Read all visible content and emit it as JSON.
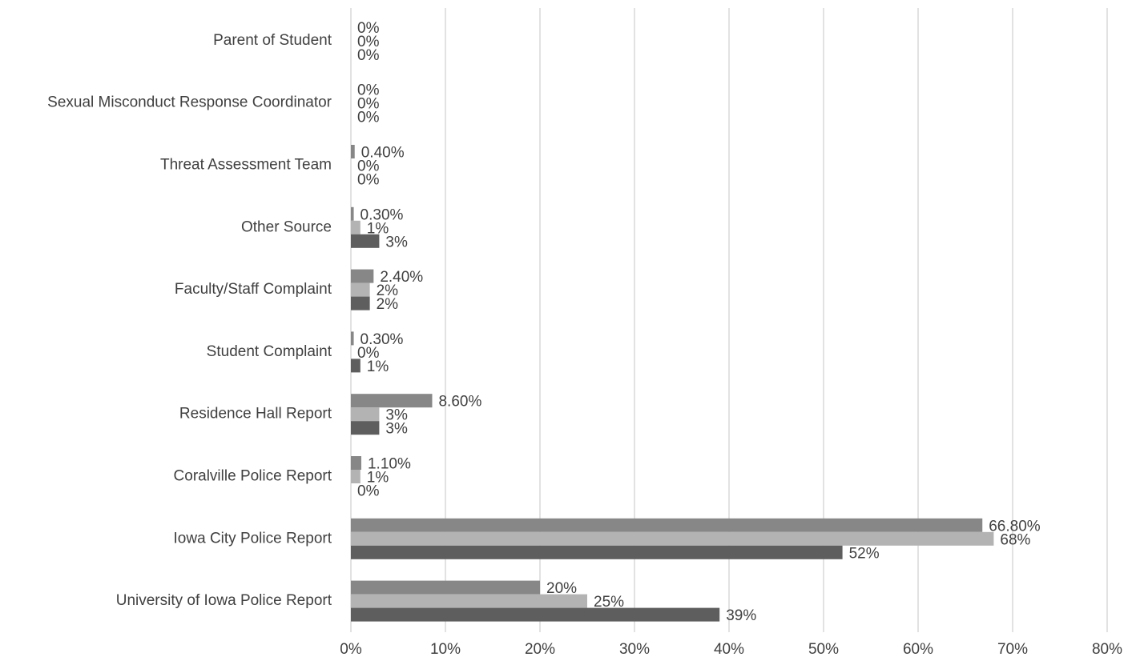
{
  "chart_data": {
    "type": "hbar",
    "categories": [
      "University of Iowa Police Report",
      "Iowa City Police Report",
      "Coralville Police Report",
      "Residence Hall Report",
      "Student Complaint",
      "Faculty/Staff Complaint",
      "Other Source",
      "Threat Assessment Team",
      "Sexual Misconduct Response Coordinator",
      "Parent of Student"
    ],
    "series": [
      {
        "color": "#878787",
        "values": [
          20,
          66.8,
          1.1,
          8.6,
          0.3,
          2.4,
          0.3,
          0.4,
          0,
          0
        ],
        "value_labels": [
          "20%",
          "66.80%",
          "1.10%",
          "8.60%",
          "0.30%",
          "2.40%",
          "0.30%",
          "0.40%",
          "0%",
          "0%"
        ]
      },
      {
        "color": "#b3b3b3",
        "values": [
          25,
          68,
          1,
          3,
          0,
          2,
          1,
          0,
          0,
          0
        ],
        "value_labels": [
          "25%",
          "68%",
          "1%",
          "3%",
          "0%",
          "2%",
          "1%",
          "0%",
          "0%",
          "0%"
        ]
      },
      {
        "color": "#5e5e5e",
        "values": [
          39,
          52,
          0,
          3,
          1,
          2,
          3,
          0,
          0,
          0
        ],
        "value_labels": [
          "39%",
          "52%",
          "0%",
          "3%",
          "1%",
          "2%",
          "3%",
          "0%",
          "0%",
          "0%"
        ]
      }
    ],
    "xlim": [
      0,
      80
    ],
    "xticks": [
      {
        "value": 0,
        "label": "0%"
      },
      {
        "value": 10,
        "label": "10%"
      },
      {
        "value": 20,
        "label": "20%"
      },
      {
        "value": 30,
        "label": "30%"
      },
      {
        "value": 40,
        "label": "40%"
      },
      {
        "value": 50,
        "label": "50%"
      },
      {
        "value": 60,
        "label": "60%"
      },
      {
        "value": 70,
        "label": "70%"
      },
      {
        "value": 80,
        "label": "80%"
      }
    ],
    "grid": true
  }
}
